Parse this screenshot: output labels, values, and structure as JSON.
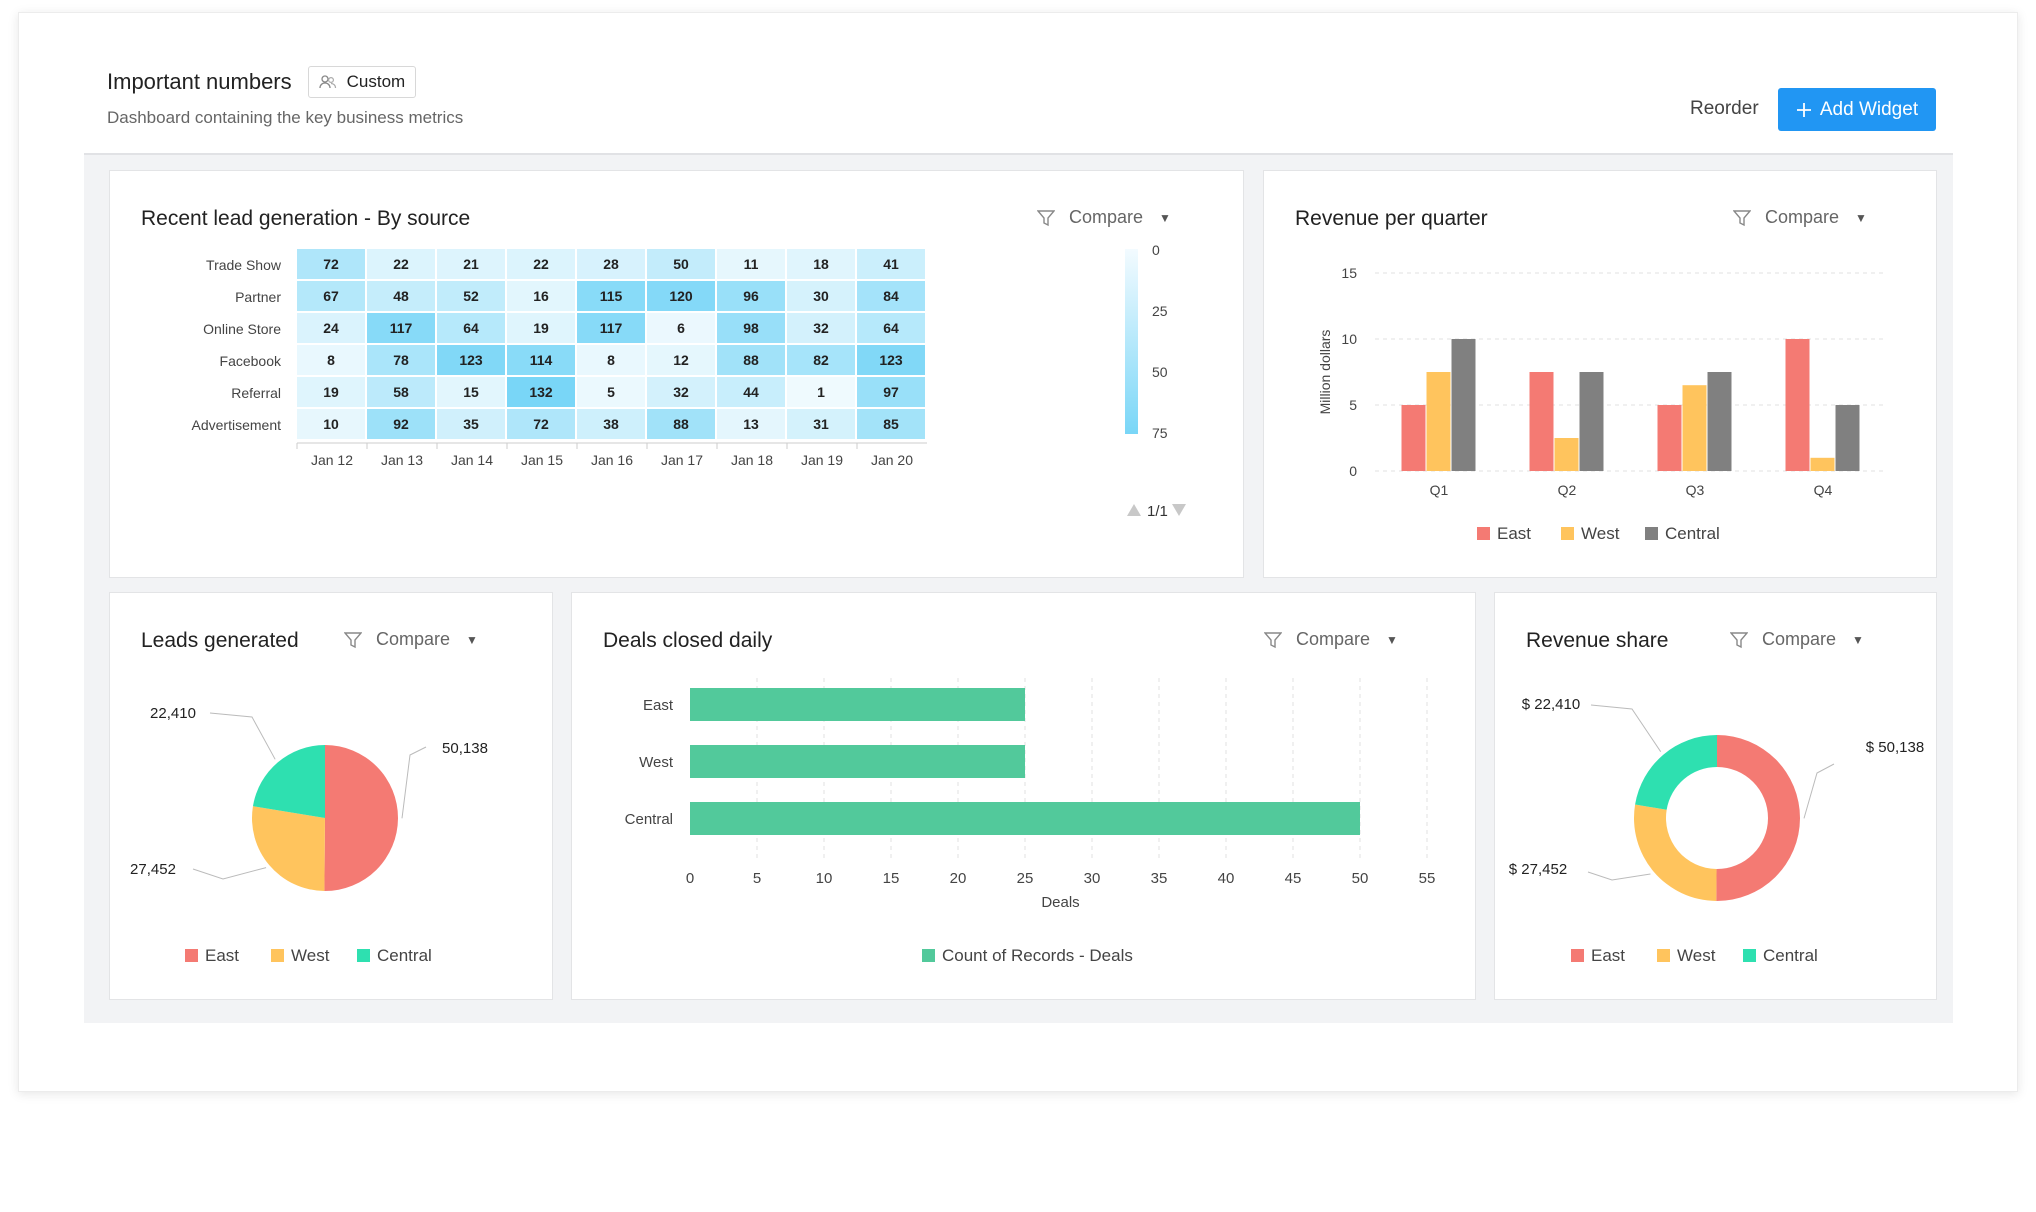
{
  "header": {
    "title": "Important numbers",
    "custom_label": "Custom",
    "subtitle": "Dashboard containing the key business metrics",
    "reorder": "Reorder",
    "add_widget": "Add Widget"
  },
  "tools": {
    "compare": "Compare"
  },
  "colors": {
    "east": "#f47a73",
    "west": "#ffc45d",
    "central": "#808080",
    "central_teal": "#2ee0b0",
    "deals": "#52c99b",
    "accent": "#2196f3"
  },
  "icons": [
    "user-group-icon",
    "plus-icon",
    "filter-icon",
    "caret-down-icon"
  ],
  "heatmap": {
    "title": "Recent lead generation - By source",
    "pager": "1/1",
    "scale_labels": [
      "0",
      "25",
      "50",
      "75"
    ],
    "chart_data": {
      "type": "heatmap",
      "rows": [
        "Trade Show",
        "Partner",
        "Online Store",
        "Facebook",
        "Referral",
        "Advertisement"
      ],
      "columns": [
        "Jan 12",
        "Jan 13",
        "Jan 14",
        "Jan 15",
        "Jan 16",
        "Jan 17",
        "Jan 18",
        "Jan 19",
        "Jan 20"
      ],
      "values": [
        [
          72,
          22,
          21,
          22,
          28,
          50,
          11,
          18,
          41
        ],
        [
          67,
          48,
          52,
          16,
          115,
          120,
          96,
          30,
          84
        ],
        [
          24,
          117,
          64,
          19,
          117,
          6,
          98,
          32,
          64
        ],
        [
          8,
          78,
          123,
          114,
          8,
          12,
          88,
          82,
          123
        ],
        [
          19,
          58,
          15,
          132,
          5,
          32,
          44,
          1,
          97
        ],
        [
          10,
          92,
          35,
          72,
          38,
          88,
          13,
          31,
          85
        ]
      ]
    }
  },
  "revenue": {
    "title": "Revenue per quarter",
    "chart_data": {
      "type": "bar",
      "categories": [
        "Q1",
        "Q2",
        "Q3",
        "Q4"
      ],
      "series": [
        {
          "name": "East",
          "values": [
            5,
            7.5,
            5,
            10
          ]
        },
        {
          "name": "West",
          "values": [
            7.5,
            2.5,
            6.5,
            1
          ]
        },
        {
          "name": "Central",
          "values": [
            10,
            7.5,
            7.5,
            5
          ]
        }
      ],
      "ylabel": "Million dollars",
      "ylim": [
        0,
        15
      ],
      "yticks": [
        "0",
        "5",
        "10",
        "15"
      ],
      "grid": true,
      "legend": "bottom"
    }
  },
  "leads": {
    "title": "Leads generated",
    "chart_data": {
      "type": "pie",
      "labels": [
        "East",
        "West",
        "Central"
      ],
      "values": [
        50138,
        27452,
        22410
      ],
      "value_labels": [
        "50,138",
        "27,452",
        "22,410"
      ],
      "legend": "bottom"
    }
  },
  "deals": {
    "title": "Deals closed daily",
    "chart_data": {
      "type": "bar",
      "orientation": "horizontal",
      "categories": [
        "East",
        "West",
        "Central"
      ],
      "values": [
        25,
        25,
        50
      ],
      "xlabel": "Deals",
      "xlim": [
        0,
        55
      ],
      "xticks": [
        "0",
        "5",
        "10",
        "15",
        "20",
        "25",
        "30",
        "35",
        "40",
        "45",
        "50",
        "55"
      ],
      "series_name": "Count of Records - Deals",
      "legend": "bottom"
    }
  },
  "share": {
    "title": "Revenue share",
    "chart_data": {
      "type": "pie",
      "donut": true,
      "labels": [
        "East",
        "West",
        "Central"
      ],
      "values": [
        50138,
        27452,
        22410
      ],
      "value_labels": [
        "$ 50,138",
        "$ 27,452",
        "$ 22,410"
      ],
      "legend": "bottom"
    }
  }
}
